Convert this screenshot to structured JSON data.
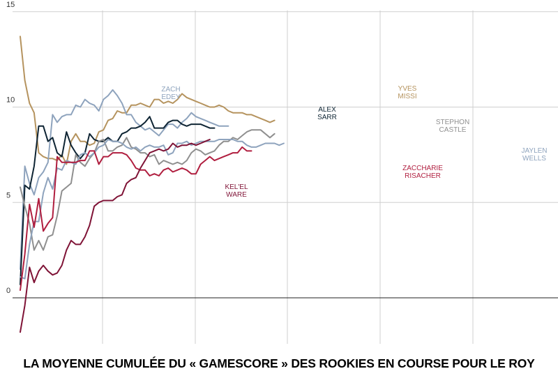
{
  "title": "LA MOYENNE CUMULÉE DU « GAMESCORE » DES ROOKIES EN COURSE POUR LE ROY",
  "chart_data": {
    "type": "line",
    "title": "LA MOYENNE CUMULÉE DU « GAMESCORE » DES ROOKIES EN COURSE POUR LE ROY",
    "xlabel": "",
    "ylabel": "",
    "xlim": [
      1,
      60
    ],
    "ylim": [
      -2.4,
      15
    ],
    "yticks": [
      0,
      5,
      10,
      15
    ],
    "grid": true,
    "series": [
      {
        "name": "YVES MISSI",
        "label_lines": [
          "YVES",
          "MISSI"
        ],
        "color": "#b5935e",
        "values": [
          13.7,
          11.4,
          10.2,
          9.7,
          7.6,
          7.4,
          7.3,
          7.3,
          7.2,
          7.5,
          7.0,
          8.2,
          8.6,
          8.2,
          8.2,
          8.0,
          8.1,
          8.7,
          8.8,
          9.3,
          9.4,
          9.8,
          9.7,
          9.7,
          10.1,
          10.1,
          10.2,
          10.1,
          10.0,
          10.4,
          10.4,
          10.2,
          10.3,
          10.2,
          10.4,
          10.7,
          10.5,
          10.4,
          10.3,
          10.2,
          10.1,
          10.0,
          10.0,
          10.1,
          10.0,
          9.8,
          9.7,
          9.7,
          9.7,
          9.6,
          9.6,
          9.5,
          9.4,
          9.3,
          9.2,
          9.3
        ]
      },
      {
        "name": "ZACH EDEY",
        "label_lines": [
          "ZACH",
          "EDEY"
        ],
        "color": "#8ea3bd",
        "values": [
          1.5,
          6.9,
          6.0,
          5.4,
          6.3,
          6.6,
          7.1,
          9.6,
          9.2,
          9.5,
          9.6,
          9.6,
          10.1,
          10.0,
          10.4,
          10.2,
          10.1,
          9.8,
          10.4,
          10.6,
          10.9,
          10.6,
          10.2,
          9.6,
          9.6,
          9.2,
          9.0,
          8.8,
          8.9,
          8.7,
          8.5,
          8.8,
          9.1,
          9.1,
          8.9,
          9.2,
          9.4,
          9.7,
          9.5,
          9.4,
          9.3,
          9.2,
          9.1,
          9.0,
          9.0,
          9.0
        ]
      },
      {
        "name": "ALEX SARR",
        "label_lines": [
          "ALEX",
          "SARR"
        ],
        "color": "#0e2433",
        "values": [
          0.7,
          5.9,
          5.7,
          6.9,
          9.0,
          9.0,
          8.2,
          8.4,
          7.6,
          7.4,
          8.7,
          8.0,
          7.6,
          7.3,
          7.6,
          8.6,
          8.3,
          8.2,
          8.2,
          8.4,
          8.2,
          8.2,
          8.6,
          8.7,
          8.9,
          8.9,
          9.0,
          9.2,
          9.5,
          8.9,
          8.9,
          8.9,
          9.2,
          9.3,
          9.3,
          9.1,
          9.0,
          9.1,
          9.1,
          9.1,
          9.0,
          8.9,
          8.9
        ]
      },
      {
        "name": "STEPHON CASTLE",
        "label_lines": [
          "STEPHON",
          "CASTLE"
        ],
        "color": "#8f8f8f",
        "values": [
          5.8,
          4.8,
          3.9,
          2.5,
          3.0,
          2.5,
          3.2,
          3.3,
          4.3,
          5.6,
          5.8,
          6.0,
          7.5,
          7.1,
          6.9,
          7.3,
          7.6,
          8.2,
          8.3,
          7.7,
          7.7,
          7.9,
          8.0,
          8.4,
          7.9,
          7.8,
          7.6,
          7.6,
          7.4,
          7.5,
          7.0,
          7.2,
          7.1,
          7.0,
          7.1,
          7.0,
          7.2,
          7.6,
          7.8,
          7.7,
          7.5,
          7.6,
          7.7,
          8.0,
          8.2,
          8.2,
          8.4,
          8.3,
          8.5,
          8.7,
          8.8,
          8.8,
          8.8,
          8.6,
          8.4,
          8.6
        ]
      },
      {
        "name": "JAYLEN WELLS",
        "label_lines": [
          "JAYLEN",
          "WELLS"
        ],
        "color": "#8ea3bd",
        "values": [
          1.1,
          1.0,
          2.8,
          4.0,
          4.0,
          5.5,
          6.3,
          5.7,
          6.8,
          6.7,
          7.2,
          7.1,
          7.0,
          7.5,
          7.6,
          7.4,
          7.6,
          7.9,
          8.0,
          8.3,
          8.2,
          8.2,
          8.1,
          7.9,
          7.8,
          7.9,
          7.7,
          7.9,
          8.0,
          7.9,
          7.9,
          8.0,
          7.5,
          7.6,
          8.1,
          8.1,
          8.2,
          8.0,
          8.1,
          8.2,
          8.2,
          8.2,
          8.2,
          8.3,
          8.3,
          8.3,
          8.3,
          8.2,
          8.2,
          8.0,
          7.9,
          7.9,
          8.0,
          8.1,
          8.1,
          8.1,
          8.0,
          8.1
        ]
      },
      {
        "name": "ZACCHARIE RISACHER",
        "label_lines": [
          "ZACCHARIE",
          "RISACHER"
        ],
        "color": "#b01e3f",
        "values": [
          0.4,
          2.3,
          4.9,
          3.7,
          5.2,
          3.5,
          3.9,
          4.2,
          7.4,
          7.1,
          7.1,
          7.1,
          7.1,
          7.2,
          7.2,
          7.7,
          7.7,
          7.0,
          7.4,
          7.4,
          7.6,
          7.6,
          7.6,
          7.5,
          7.2,
          6.8,
          6.7,
          6.7,
          6.4,
          6.5,
          6.4,
          6.7,
          6.8,
          6.6,
          6.7,
          6.8,
          6.7,
          6.5,
          6.5,
          7.0,
          7.2,
          7.4,
          7.2,
          7.3,
          7.4,
          7.5,
          7.6,
          7.6,
          7.9,
          7.7,
          7.7
        ]
      },
      {
        "name": "KEL'EL WARE",
        "label_lines": [
          "KEL'EL",
          "WARE"
        ],
        "color": "#7f1336",
        "values": [
          -1.8,
          -0.4,
          1.6,
          0.8,
          1.4,
          1.7,
          1.4,
          1.2,
          1.3,
          1.7,
          2.5,
          3.0,
          2.8,
          2.8,
          3.2,
          3.8,
          4.8,
          5.0,
          5.1,
          5.1,
          5.1,
          5.3,
          5.4,
          6.0,
          6.2,
          6.3,
          6.8,
          7.2,
          7.6,
          7.7,
          7.8,
          7.7,
          7.8,
          8.1,
          7.9,
          8.0,
          8.0,
          8.1,
          8.0,
          8.1,
          8.2,
          8.3
        ]
      }
    ],
    "label_positions_note": "labels placed near line ends as in original"
  }
}
